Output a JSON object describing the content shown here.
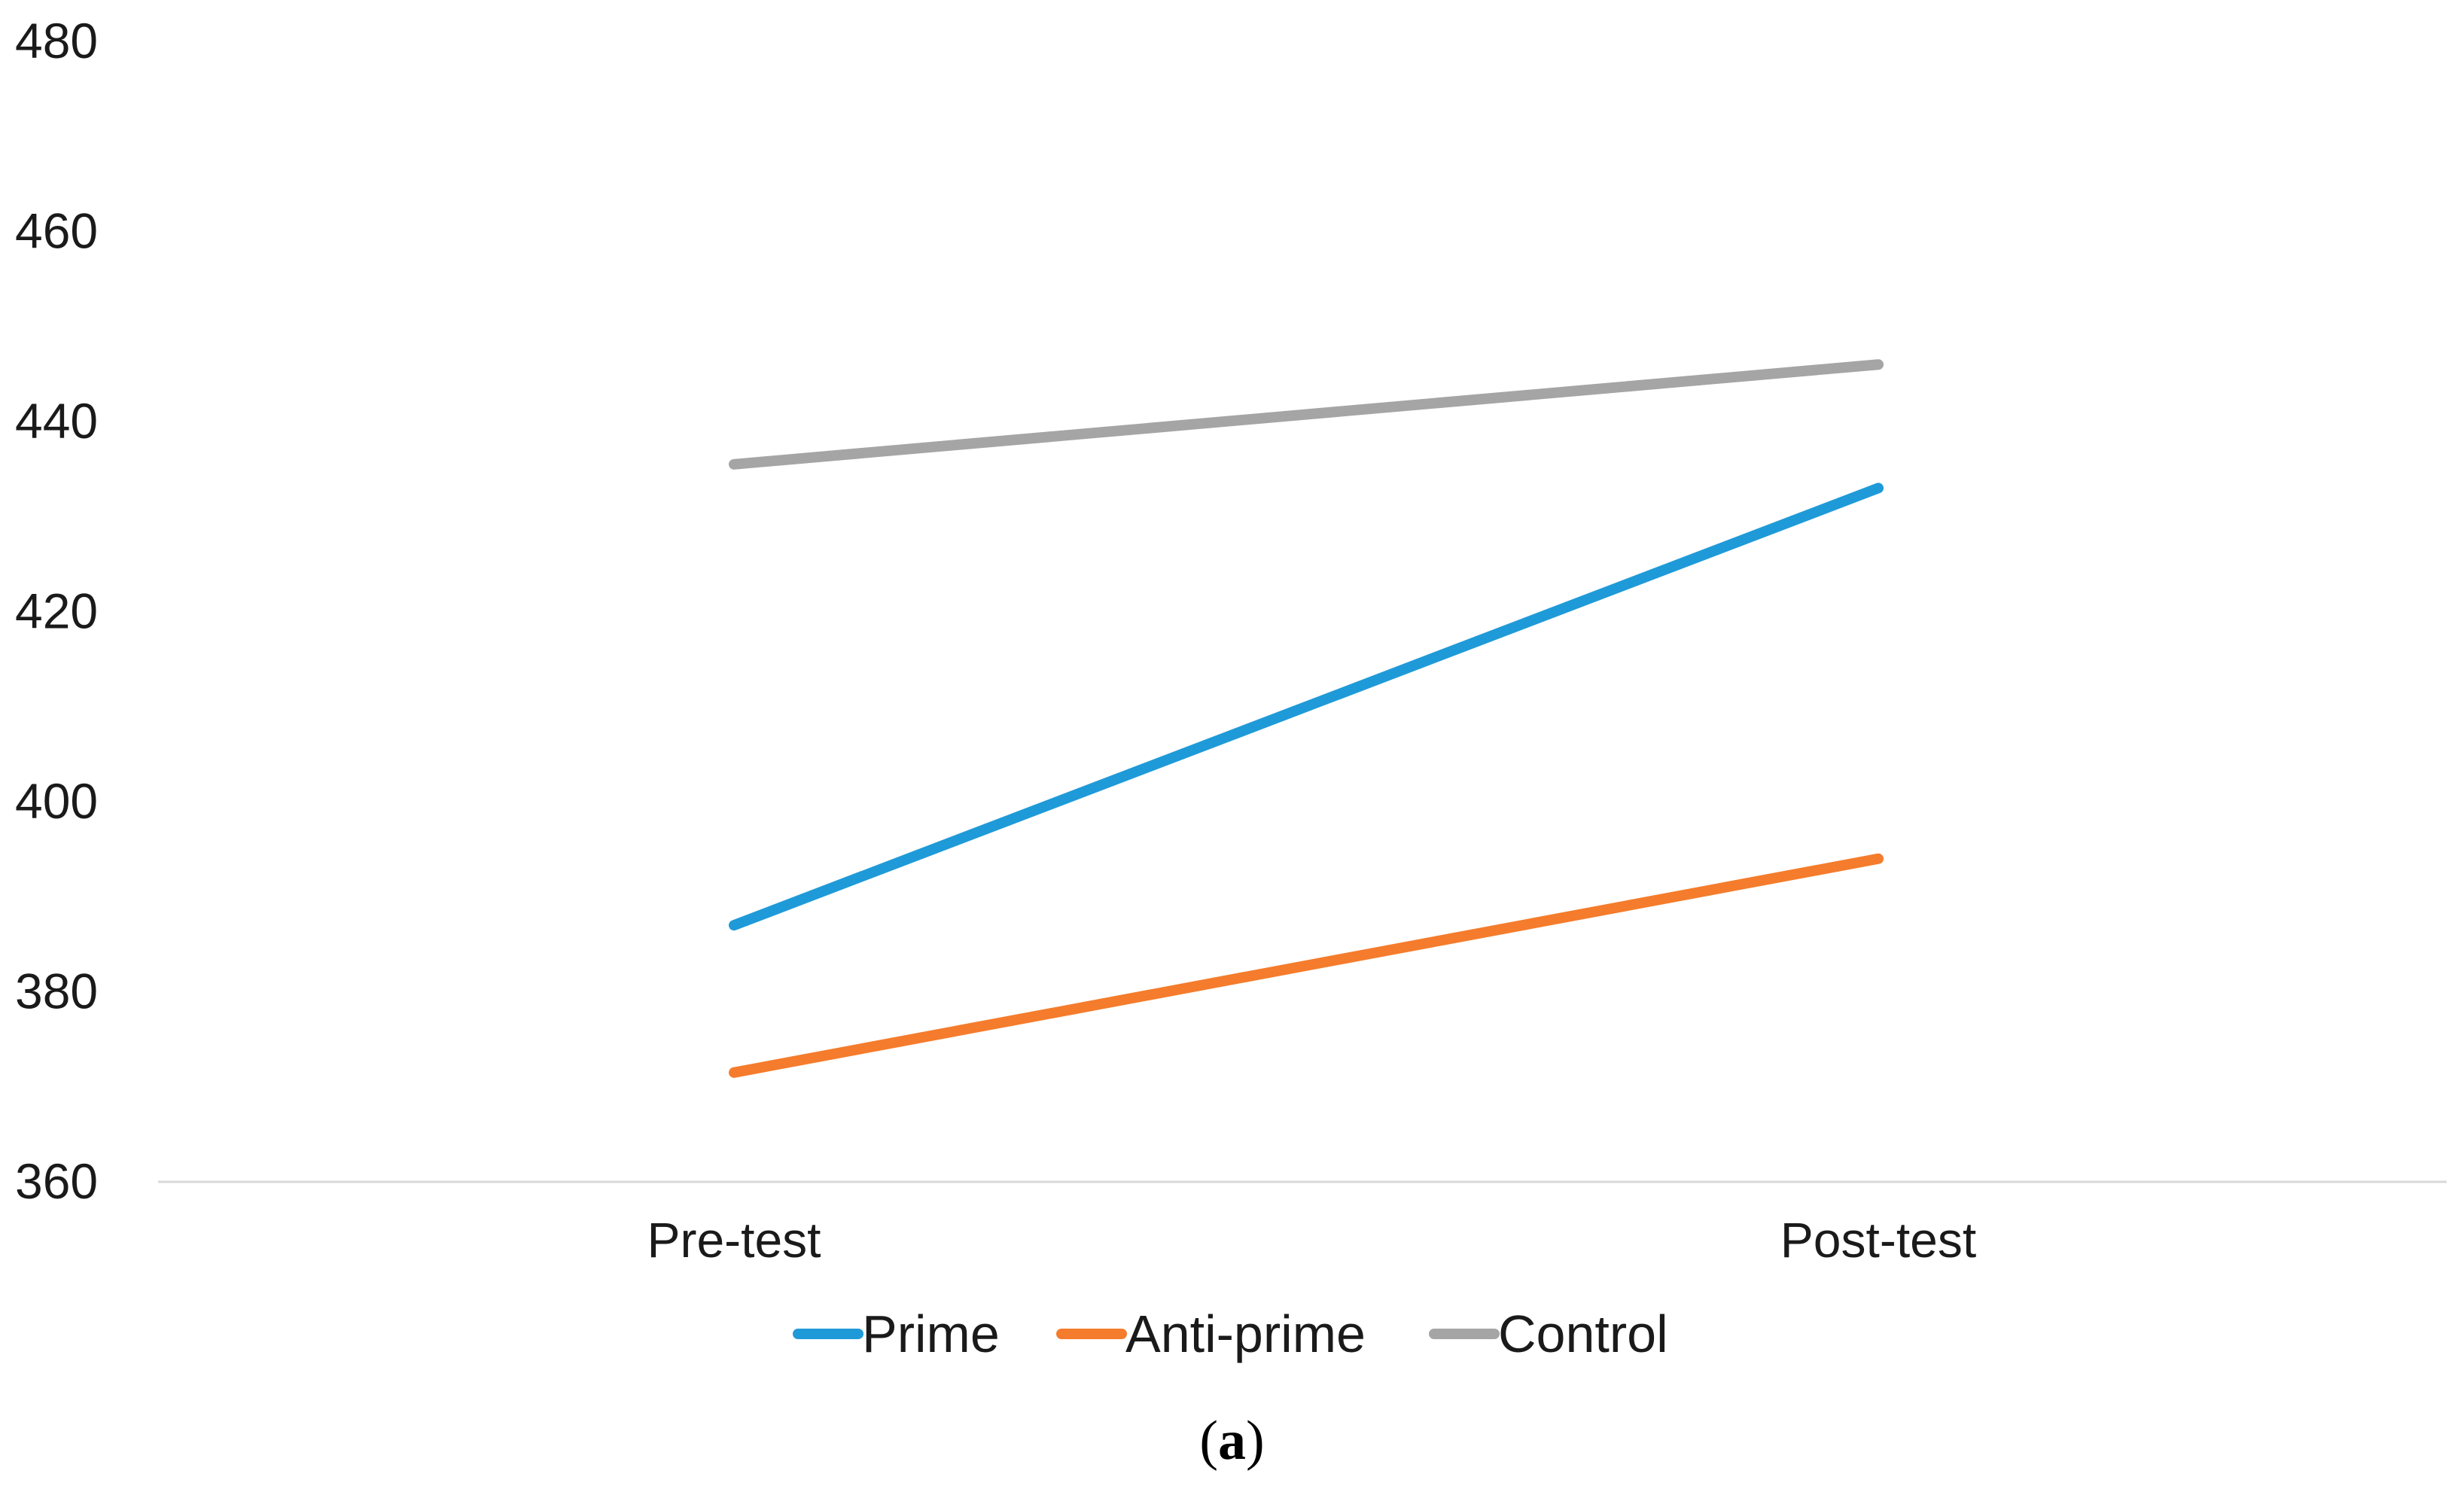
{
  "chart_data": {
    "type": "line",
    "categories": [
      "Pre-test",
      "Post-test"
    ],
    "series": [
      {
        "name": "Prime",
        "values": [
          387,
          433
        ],
        "color": "#1f9ad8"
      },
      {
        "name": "Anti-prime",
        "values": [
          371.5,
          394
        ],
        "color": "#f47c2c"
      },
      {
        "name": "Control",
        "values": [
          435.5,
          446
        ],
        "color": "#a5a5a5"
      }
    ],
    "yticks": [
      "360",
      "380",
      "400",
      "420",
      "440",
      "460",
      "480"
    ],
    "ylim": [
      360,
      480
    ],
    "grid": false,
    "legend": "bottom"
  },
  "caption": {
    "open": "(",
    "letter": "a",
    "close": ")"
  }
}
